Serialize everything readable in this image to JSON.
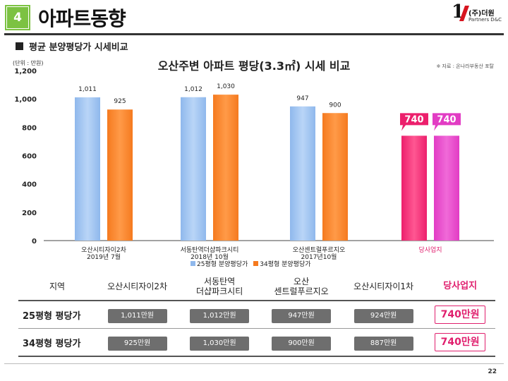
{
  "header": {
    "section_number": "4",
    "title": "아파트동향",
    "logo_text": "(주)더원",
    "logo_sub": "Partners D&C",
    "logo_number": "1"
  },
  "section_heading": "평균 분양평당가 시세비교",
  "chart_data": {
    "type": "bar",
    "title": "오산주변 아파트 평당(3.3㎡) 시세 비교",
    "unit_label": "(단위 : 만원)",
    "source": "※ 자료 : 온나라부동산 포탈",
    "ylim": [
      0,
      1200
    ],
    "yticks": [
      "0",
      "200",
      "400",
      "600",
      "800",
      "1,000",
      "1,200"
    ],
    "categories": [
      {
        "name": "오산시티자이2차",
        "date": "2019년 7월"
      },
      {
        "name": "서동탄역더샵파크시티",
        "date": "2018년 10월"
      },
      {
        "name": "오산센트럴푸르지오",
        "date": "2017년10월"
      },
      {
        "name": "당사업지",
        "date": ""
      }
    ],
    "series": [
      {
        "name": "25평형 분양평당가",
        "values": [
          1011,
          1012,
          947,
          740
        ],
        "labels": [
          "1,011",
          "1,012",
          "947",
          "740"
        ],
        "color": "#8fb8ec"
      },
      {
        "name": "34평형 분양평당가",
        "values": [
          925,
          1030,
          900,
          740
        ],
        "labels": [
          "925",
          "1,030",
          "900",
          "740"
        ],
        "color": "#f57a1f"
      }
    ],
    "highlight_colors": [
      "#ec1f6c",
      "#e23cc4"
    ],
    "grid": false,
    "legend": "bottom"
  },
  "table": {
    "headers": [
      "지역",
      "오산시티자이2차",
      "서동탄역\n더샵파크시티",
      "오산\n센트럴푸르지오",
      "오산시티자이1차",
      "당사업지"
    ],
    "rows": [
      {
        "label": "25평형 평당가",
        "cells": [
          "1,011만원",
          "1,012만원",
          "947만원",
          "924만원",
          "740만원"
        ]
      },
      {
        "label": "34평형 평당가",
        "cells": [
          "925만원",
          "1,030만원",
          "900만원",
          "887만원",
          "740만원"
        ]
      }
    ]
  },
  "page_number": "22"
}
